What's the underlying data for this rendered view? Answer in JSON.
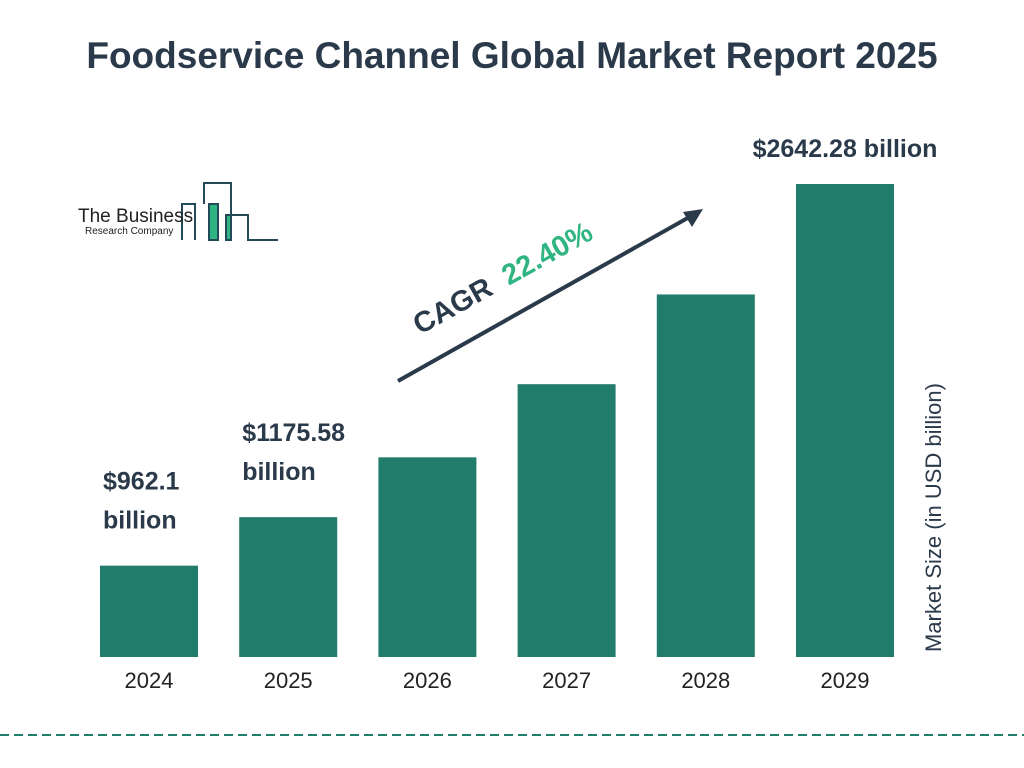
{
  "chart_data": {
    "type": "bar",
    "title": "Foodservice Channel Global Market Report 2025",
    "ylabel": "Market Size (in USD billion)",
    "categories": [
      "2024",
      "2025",
      "2026",
      "2027",
      "2028",
      "2029"
    ],
    "values": [
      962.1,
      1175.58,
      1439,
      1761,
      2156,
      2642.28
    ],
    "data_labels": [
      "$962.1 billion",
      "$1175.58 billion",
      "",
      "",
      "",
      "$2642.28 billion"
    ],
    "annotation": {
      "prefix": "CAGR",
      "value": "22.40%"
    },
    "ylim": [
      560,
      2642.28
    ],
    "grid": false,
    "bar_color": "#217c6b",
    "accent_color": "#2fb582"
  },
  "logo": {
    "line1": "The Business",
    "line2": "Research Company"
  }
}
